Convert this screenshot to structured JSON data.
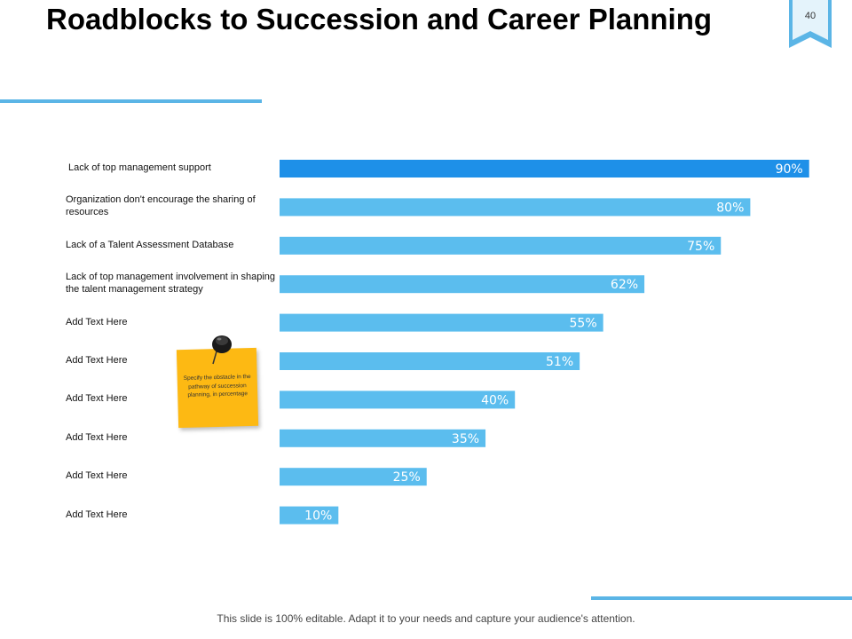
{
  "slide": {
    "title": "Roadblocks to Succession and Career Planning",
    "page_number": "40",
    "footer": "This slide is 100% editable. Adapt it to your needs and capture your audience's attention.",
    "note_text": "Specify the obstacle in the pathway of succession planning, in percentage"
  },
  "colors": {
    "accent": "#5BB5E6",
    "bar": "#5BBDEE",
    "bar_highlight": "#1E90E8",
    "note": "#FDB913"
  },
  "chart_data": {
    "type": "bar",
    "orientation": "horizontal",
    "title": "",
    "xlabel": "",
    "ylabel": "",
    "xlim": [
      0,
      100
    ],
    "categories": [
      "Lack of top management support",
      "Organization don't encourage the sharing of resources",
      "Lack of a Talent Assessment Database",
      "Lack of top management involvement in shaping the talent management strategy",
      "Add Text Here",
      "Add Text Here",
      "Add Text Here",
      "Add Text Here",
      "Add Text Here",
      "Add Text Here"
    ],
    "values": [
      90,
      80,
      75,
      62,
      55,
      51,
      40,
      35,
      25,
      10
    ],
    "value_labels": [
      "90%",
      "80%",
      "75%",
      "62%",
      "55%",
      "51%",
      "40%",
      "35%",
      "25%",
      "10%"
    ]
  }
}
